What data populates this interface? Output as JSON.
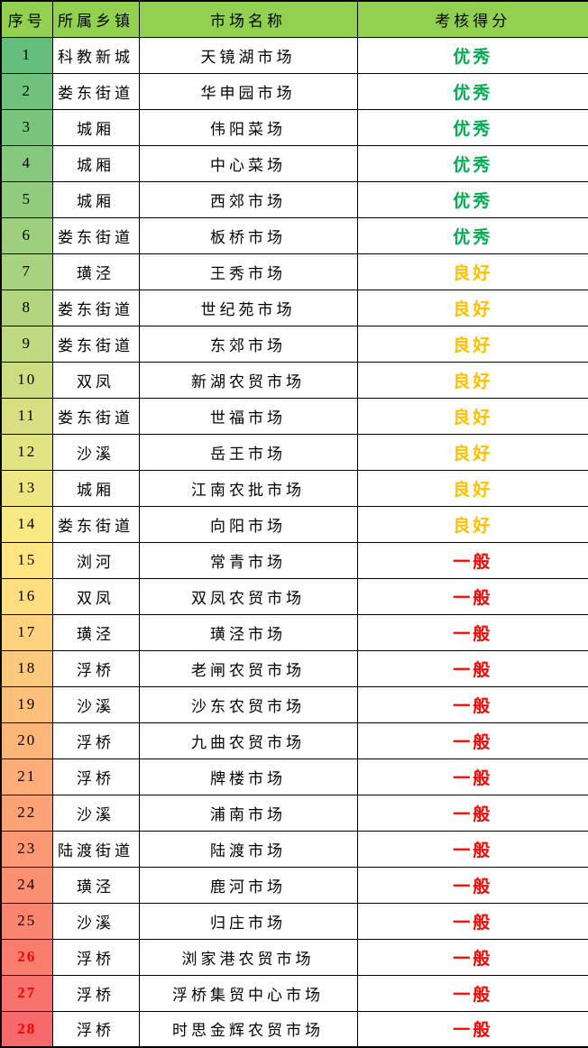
{
  "table": {
    "headers": [
      "序号",
      "所属乡镇",
      "市场名称",
      "考核得分"
    ],
    "header_bg": "#92D050",
    "red_number_color": "#FF0000",
    "score_colors": {
      "优秀": "#00B050",
      "良好": "#FFC000",
      "一般": "#FF0000"
    },
    "rows": [
      {
        "no": "1",
        "town": "科教新城",
        "market": "天镜湖市场",
        "score": "优秀",
        "num_bg": "#63BE7B",
        "num_red": false
      },
      {
        "no": "2",
        "town": "娄东街道",
        "market": "华申园市场",
        "score": "优秀",
        "num_bg": "#6FC17C",
        "num_red": false
      },
      {
        "no": "3",
        "town": "城厢",
        "market": "伟阳菜场",
        "score": "优秀",
        "num_bg": "#7AC57C",
        "num_red": false
      },
      {
        "no": "4",
        "town": "城厢",
        "market": "中心菜场",
        "score": "优秀",
        "num_bg": "#86C87D",
        "num_red": false
      },
      {
        "no": "5",
        "town": "城厢",
        "market": "西郊市场",
        "score": "优秀",
        "num_bg": "#91CB7E",
        "num_red": false
      },
      {
        "no": "6",
        "town": "娄东街道",
        "market": "板桥市场",
        "score": "优秀",
        "num_bg": "#9DCF7E",
        "num_red": false
      },
      {
        "no": "7",
        "town": "璜泾",
        "market": "王秀市场",
        "score": "良好",
        "num_bg": "#A8D27F",
        "num_red": false
      },
      {
        "no": "8",
        "town": "娄东街道",
        "market": "世纪苑市场",
        "score": "良好",
        "num_bg": "#B4D580",
        "num_red": false
      },
      {
        "no": "9",
        "town": "娄东街道",
        "market": "东郊市场",
        "score": "良好",
        "num_bg": "#BFD980",
        "num_red": false
      },
      {
        "no": "10",
        "town": "双凤",
        "market": "新湖农贸市场",
        "score": "良好",
        "num_bg": "#CBDC81",
        "num_red": false
      },
      {
        "no": "11",
        "town": "娄东街道",
        "market": "世福市场",
        "score": "良好",
        "num_bg": "#D7DF82",
        "num_red": false
      },
      {
        "no": "12",
        "town": "沙溪",
        "market": "岳王市场",
        "score": "良好",
        "num_bg": "#E2E382",
        "num_red": false
      },
      {
        "no": "13",
        "town": "城厢",
        "market": "江南农批市场",
        "score": "良好",
        "num_bg": "#EEE683",
        "num_red": false
      },
      {
        "no": "14",
        "town": "娄东街道",
        "market": "向阳市场",
        "score": "良好",
        "num_bg": "#F9E984",
        "num_red": false
      },
      {
        "no": "15",
        "town": "浏河",
        "market": "常青市场",
        "score": "一般",
        "num_bg": "#FFE683",
        "num_red": false
      },
      {
        "no": "16",
        "town": "双凤",
        "market": "双凤农贸市场",
        "score": "一般",
        "num_bg": "#FEDD81",
        "num_red": false
      },
      {
        "no": "17",
        "town": "璜泾",
        "market": "璜泾市场",
        "score": "一般",
        "num_bg": "#FED37F",
        "num_red": false
      },
      {
        "no": "18",
        "town": "浮桥",
        "market": "老闸农贸市场",
        "score": "一般",
        "num_bg": "#FDC97D",
        "num_red": false
      },
      {
        "no": "19",
        "town": "沙溪",
        "market": "沙东农贸市场",
        "score": "一般",
        "num_bg": "#FDC07C",
        "num_red": false
      },
      {
        "no": "20",
        "town": "浮桥",
        "market": "九曲农贸市场",
        "score": "一般",
        "num_bg": "#FCB67A",
        "num_red": false
      },
      {
        "no": "21",
        "town": "浮桥",
        "market": "牌楼市场",
        "score": "一般",
        "num_bg": "#FCAC78",
        "num_red": false
      },
      {
        "no": "22",
        "town": "沙溪",
        "market": "浦南市场",
        "score": "一般",
        "num_bg": "#FBA376",
        "num_red": false
      },
      {
        "no": "23",
        "town": "陆渡街道",
        "market": "陆渡市场",
        "score": "一般",
        "num_bg": "#FB9974",
        "num_red": false
      },
      {
        "no": "24",
        "town": "璜泾",
        "market": "鹿河市场",
        "score": "一般",
        "num_bg": "#FA8F72",
        "num_red": false
      },
      {
        "no": "25",
        "town": "沙溪",
        "market": "归庄市场",
        "score": "一般",
        "num_bg": "#FA8671",
        "num_red": false
      },
      {
        "no": "26",
        "town": "浮桥",
        "market": "浏家港农贸市场",
        "score": "一般",
        "num_bg": "#F97C6F",
        "num_red": true
      },
      {
        "no": "27",
        "town": "浮桥",
        "market": "浮桥集贸中心市场",
        "score": "一般",
        "num_bg": "#F8736D",
        "num_red": true
      },
      {
        "no": "28",
        "town": "浮桥",
        "market": "时思金辉农贸市场",
        "score": "一般",
        "num_bg": "#F8696B",
        "num_red": true
      }
    ]
  }
}
